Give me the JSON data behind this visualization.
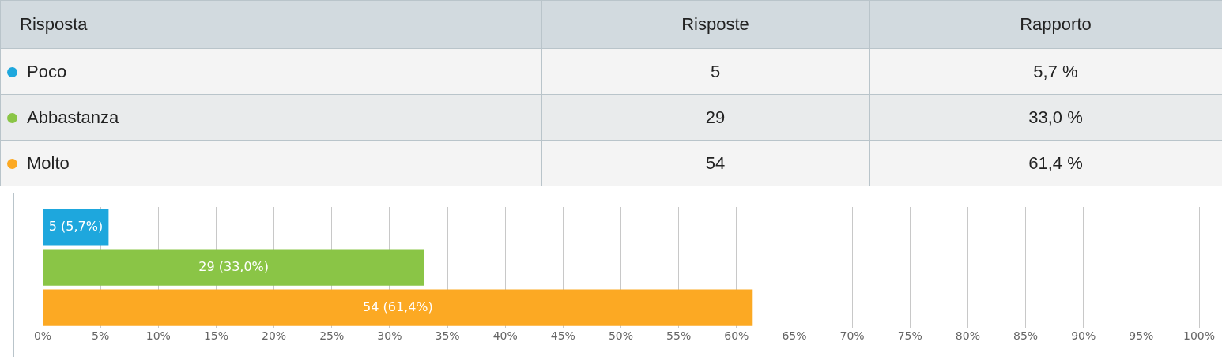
{
  "chart_data": [
    {
      "type": "other",
      "categories": [
        "Risposta",
        "Risposte",
        "Rapporto"
      ],
      "y_categories": [
        "Poco",
        "Abbastanza",
        "Molto"
      ],
      "cell_labels": [
        [
          "5",
          "5,7 %"
        ],
        [
          "29",
          "33,0 %"
        ],
        [
          "54",
          "61,4 %"
        ]
      ]
    },
    {
      "type": "bar",
      "orientation": "horizontal",
      "categories": [
        null,
        null,
        null
      ],
      "values": [
        5.7,
        33.0,
        61.4
      ],
      "colors": [
        "#1ea7dd",
        "#8ac546",
        "#fca923"
      ],
      "value_labels": [
        "5 (5,7%)",
        "29 (33,0%)",
        "54 (61,4%)"
      ],
      "xlim": [
        0,
        100
      ],
      "xticks": [
        {
          "value": 0,
          "label": "0%"
        },
        {
          "value": 5,
          "label": "5%"
        },
        {
          "value": 10,
          "label": "10%"
        },
        {
          "value": 15,
          "label": "15%"
        },
        {
          "value": 20,
          "label": "20%"
        },
        {
          "value": 25,
          "label": "25%"
        },
        {
          "value": 30,
          "label": "30%"
        },
        {
          "value": 35,
          "label": "35%"
        },
        {
          "value": 40,
          "label": "40%"
        },
        {
          "value": 45,
          "label": "45%"
        },
        {
          "value": 50,
          "label": "50%"
        },
        {
          "value": 55,
          "label": "55%"
        },
        {
          "value": 60,
          "label": "60%"
        },
        {
          "value": 65,
          "label": "65%"
        },
        {
          "value": 70,
          "label": "70%"
        },
        {
          "value": 75,
          "label": "75%"
        },
        {
          "value": 80,
          "label": "80%"
        },
        {
          "value": 85,
          "label": "85%"
        },
        {
          "value": 90,
          "label": "90%"
        },
        {
          "value": 95,
          "label": "95%"
        },
        {
          "value": 100,
          "label": "100%"
        }
      ],
      "grid": "x",
      "tick_labels": "x",
      "legend": false
    }
  ]
}
